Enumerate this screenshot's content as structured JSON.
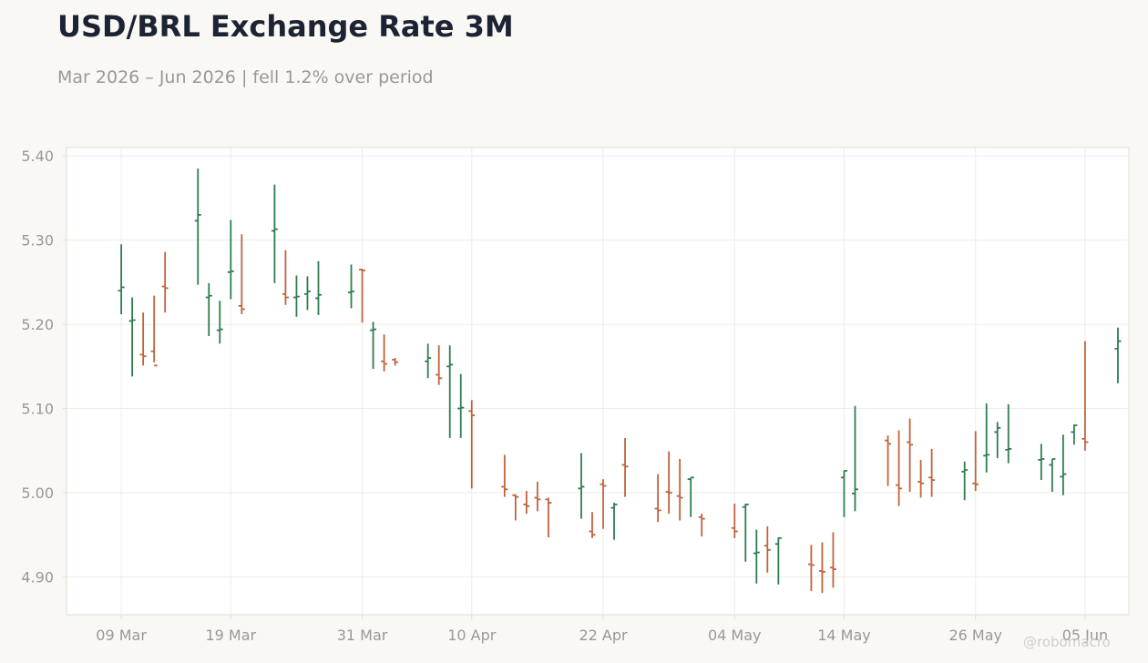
{
  "header": {
    "title": "USD/BRL Exchange Rate 3M",
    "subtitle": "Mar 2026 – Jun 2026 | fell 1.2% over period"
  },
  "watermark": "@robomacro",
  "colors": {
    "up": "#2e7d4f",
    "down": "#c0633d",
    "grid": "#eeece8",
    "frame": "#e1ded8",
    "plot_bg": "#ffffff",
    "page_bg": "#f9f8f5",
    "tick_text": "#9a9894"
  },
  "chart_data": {
    "type": "ohlc",
    "title": "USD/BRL Exchange Rate 3M",
    "subtitle": "Mar 2026 – Jun 2026 | fell 1.2% over period",
    "xlabel": "",
    "ylabel": "",
    "ylim": [
      4.855,
      5.41
    ],
    "xlim": [
      "2026-03-04",
      "2026-06-09"
    ],
    "grid": true,
    "legend": "none",
    "y_ticks": [
      4.9,
      5.0,
      5.1,
      5.2,
      5.3,
      5.4
    ],
    "y_tick_labels": [
      "4.90",
      "5.00",
      "5.10",
      "5.20",
      "5.30",
      "5.40"
    ],
    "x_ticks": [
      "2026-03-09",
      "2026-03-19",
      "2026-03-31",
      "2026-04-10",
      "2026-04-22",
      "2026-05-04",
      "2026-05-14",
      "2026-05-26",
      "2026-06-05"
    ],
    "x_tick_labels": [
      "09 Mar",
      "19 Mar",
      "31 Mar",
      "10 Apr",
      "22 Apr",
      "04 May",
      "14 May",
      "26 May",
      "05 Jun"
    ],
    "dates": [
      "2026-03-09",
      "2026-03-10",
      "2026-03-11",
      "2026-03-12",
      "2026-03-13",
      "2026-03-16",
      "2026-03-17",
      "2026-03-18",
      "2026-03-19",
      "2026-03-20",
      "2026-03-23",
      "2026-03-24",
      "2026-03-25",
      "2026-03-26",
      "2026-03-27",
      "2026-03-30",
      "2026-03-31",
      "2026-04-01",
      "2026-04-02",
      "2026-04-03",
      "2026-04-06",
      "2026-04-07",
      "2026-04-08",
      "2026-04-09",
      "2026-04-10",
      "2026-04-13",
      "2026-04-14",
      "2026-04-15",
      "2026-04-16",
      "2026-04-17",
      "2026-04-20",
      "2026-04-21",
      "2026-04-22",
      "2026-04-23",
      "2026-04-24",
      "2026-04-27",
      "2026-04-28",
      "2026-04-29",
      "2026-04-30",
      "2026-05-01",
      "2026-05-04",
      "2026-05-05",
      "2026-05-06",
      "2026-05-07",
      "2026-05-08",
      "2026-05-11",
      "2026-05-12",
      "2026-05-13",
      "2026-05-14",
      "2026-05-15",
      "2026-05-18",
      "2026-05-19",
      "2026-05-20",
      "2026-05-21",
      "2026-05-22",
      "2026-05-25",
      "2026-05-26",
      "2026-05-27",
      "2026-05-28",
      "2026-05-29",
      "2026-06-01",
      "2026-06-02",
      "2026-06-03",
      "2026-06-04",
      "2026-06-05",
      "2026-06-08"
    ],
    "open": [
      5.24,
      5.204,
      5.164,
      5.168,
      5.245,
      5.323,
      5.232,
      5.193,
      5.262,
      5.222,
      5.311,
      5.236,
      5.232,
      5.236,
      5.231,
      5.238,
      5.265,
      5.193,
      5.156,
      5.158,
      5.156,
      5.14,
      5.15,
      5.1,
      5.097,
      5.007,
      4.997,
      4.986,
      4.994,
      4.992,
      5.005,
      4.954,
      5.01,
      4.982,
      5.033,
      4.981,
      5.001,
      4.996,
      5.016,
      4.971,
      4.958,
      4.983,
      4.928,
      4.937,
      4.939,
      4.915,
      4.907,
      4.911,
      5.018,
      4.999,
      5.062,
      5.009,
      5.06,
      5.013,
      5.018,
      5.025,
      5.011,
      5.044,
      5.072,
      5.051,
      5.039,
      5.033,
      5.019,
      5.072,
      5.064,
      5.171
    ],
    "high": [
      5.295,
      5.232,
      5.214,
      5.234,
      5.286,
      5.385,
      5.249,
      5.228,
      5.324,
      5.307,
      5.366,
      5.288,
      5.258,
      5.257,
      5.275,
      5.271,
      5.266,
      5.203,
      5.188,
      5.16,
      5.177,
      5.175,
      5.175,
      5.141,
      5.11,
      5.045,
      4.998,
      5.002,
      5.013,
      4.994,
      5.047,
      4.977,
      5.016,
      4.988,
      5.065,
      5.022,
      5.049,
      5.04,
      5.018,
      4.975,
      4.987,
      4.987,
      4.956,
      4.96,
      4.947,
      4.938,
      4.941,
      4.953,
      5.026,
      5.103,
      5.068,
      5.074,
      5.088,
      5.039,
      5.052,
      5.037,
      5.073,
      5.106,
      5.084,
      5.105,
      5.058,
      5.04,
      5.069,
      5.081,
      5.18,
      5.196
    ],
    "low": [
      5.212,
      5.138,
      5.151,
      5.155,
      5.214,
      5.247,
      5.186,
      5.177,
      5.23,
      5.212,
      5.249,
      5.223,
      5.209,
      5.217,
      5.211,
      5.219,
      5.202,
      5.147,
      5.144,
      5.151,
      5.136,
      5.128,
      5.065,
      5.065,
      5.005,
      4.995,
      4.967,
      4.975,
      4.978,
      4.947,
      4.969,
      4.946,
      4.957,
      4.944,
      4.995,
      4.965,
      4.975,
      4.967,
      4.971,
      4.948,
      4.946,
      4.918,
      4.892,
      4.905,
      4.891,
      4.883,
      4.881,
      4.887,
      4.971,
      4.978,
      5.008,
      4.984,
      5.001,
      4.994,
      4.995,
      4.991,
      5.002,
      5.024,
      5.041,
      5.035,
      5.015,
      5.001,
      4.997,
      5.057,
      5.05,
      5.13
    ],
    "close": [
      5.244,
      5.205,
      5.162,
      5.151,
      5.243,
      5.33,
      5.234,
      5.194,
      5.263,
      5.218,
      5.313,
      5.232,
      5.233,
      5.239,
      5.235,
      5.239,
      5.264,
      5.194,
      5.153,
      5.155,
      5.16,
      5.136,
      5.152,
      5.101,
      5.092,
      5.004,
      4.995,
      4.984,
      4.992,
      4.988,
      5.007,
      4.95,
      5.008,
      4.986,
      5.031,
      4.979,
      5.0,
      4.994,
      5.018,
      4.969,
      4.954,
      4.986,
      4.929,
      4.932,
      4.946,
      4.914,
      4.906,
      4.909,
      5.026,
      5.004,
      5.058,
      5.005,
      5.057,
      5.011,
      5.015,
      5.027,
      5.01,
      5.045,
      5.077,
      5.052,
      5.04,
      5.04,
      5.022,
      5.08,
      5.06,
      5.18
    ]
  }
}
